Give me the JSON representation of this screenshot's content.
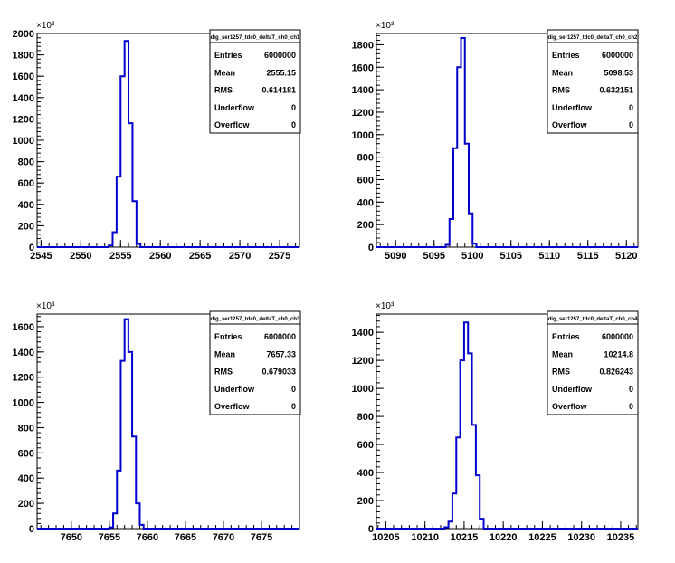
{
  "chart_data": [
    {
      "type": "bar",
      "title": "",
      "stats_title": "dig_ser1257_tdc0_deltaT_ch0_ch1",
      "stats": [
        {
          "label": "Entries",
          "value": "6000000"
        },
        {
          "label": "Mean",
          "value": "2555.15"
        },
        {
          "label": "RMS",
          "value": "0.614181"
        },
        {
          "label": "Underflow",
          "value": "0"
        },
        {
          "label": "Overflow",
          "value": "0"
        }
      ],
      "y_exponent_label": "×10³",
      "xlim": [
        2544.5,
        2577.5
      ],
      "ylim": [
        0,
        2000
      ],
      "xticks": [
        2545,
        2550,
        2555,
        2560,
        2565,
        2570,
        2575
      ],
      "yticks": [
        0,
        200,
        400,
        600,
        800,
        1000,
        1200,
        1400,
        1600,
        1800,
        2000
      ],
      "bin_width": 0.5,
      "bins_x": [
        2553.5,
        2554.0,
        2554.5,
        2555.0,
        2555.5,
        2556.0,
        2556.5,
        2557.0
      ],
      "bins_y": [
        15,
        140,
        660,
        1600,
        1930,
        1160,
        430,
        30
      ]
    },
    {
      "type": "bar",
      "title": "",
      "stats_title": "dig_ser1257_tdc0_deltaT_ch0_ch2",
      "stats": [
        {
          "label": "Entries",
          "value": "6000000"
        },
        {
          "label": "Mean",
          "value": "5098.53"
        },
        {
          "label": "RMS",
          "value": "0.632151"
        },
        {
          "label": "Underflow",
          "value": "0"
        },
        {
          "label": "Overflow",
          "value": "0"
        }
      ],
      "y_exponent_label": "×10³",
      "xlim": [
        5087.5,
        5121.5
      ],
      "ylim": [
        0,
        1900
      ],
      "xticks": [
        5090,
        5095,
        5100,
        5105,
        5110,
        5115,
        5120
      ],
      "yticks": [
        0,
        200,
        400,
        600,
        800,
        1000,
        1200,
        1400,
        1600,
        1800
      ],
      "bin_width": 0.5,
      "bins_x": [
        5096.5,
        5097.0,
        5097.5,
        5098.0,
        5098.5,
        5099.0,
        5099.5,
        5100.0
      ],
      "bins_y": [
        20,
        250,
        880,
        1600,
        1860,
        920,
        300,
        30
      ]
    },
    {
      "type": "bar",
      "title": "",
      "stats_title": "dig_ser1257_tdc0_deltaT_ch0_ch3",
      "stats": [
        {
          "label": "Entries",
          "value": "6000000"
        },
        {
          "label": "Mean",
          "value": "7657.33"
        },
        {
          "label": "RMS",
          "value": "0.679033"
        },
        {
          "label": "Underflow",
          "value": "0"
        },
        {
          "label": "Overflow",
          "value": "0"
        }
      ],
      "y_exponent_label": "×10³",
      "xlim": [
        7645.5,
        7680.0
      ],
      "ylim": [
        0,
        1700
      ],
      "xticks": [
        7650,
        7655,
        7660,
        7665,
        7670,
        7675
      ],
      "yticks": [
        0,
        200,
        400,
        600,
        800,
        1000,
        1200,
        1400,
        1600
      ],
      "bin_width": 0.5,
      "bins_x": [
        7655.0,
        7655.5,
        7656.0,
        7656.5,
        7657.0,
        7657.5,
        7658.0,
        7658.5,
        7659.0
      ],
      "bins_y": [
        10,
        120,
        460,
        1330,
        1660,
        1400,
        730,
        200,
        30
      ]
    },
    {
      "type": "bar",
      "title": "",
      "stats_title": "dig_ser1257_tdc0_deltaT_ch0_ch4",
      "stats": [
        {
          "label": "Entries",
          "value": "6000000"
        },
        {
          "label": "Mean",
          "value": "10214.8"
        },
        {
          "label": "RMS",
          "value": "0.826243"
        },
        {
          "label": "Underflow",
          "value": "0"
        },
        {
          "label": "Overflow",
          "value": "0"
        }
      ],
      "y_exponent_label": "×10³",
      "xlim": [
        10203.8,
        10237.2
      ],
      "ylim": [
        0,
        1530
      ],
      "xticks": [
        10205,
        10210,
        10215,
        10220,
        10225,
        10230,
        10235
      ],
      "yticks": [
        0,
        200,
        400,
        600,
        800,
        1000,
        1200,
        1400
      ],
      "bin_width": 0.5,
      "bins_x": [
        10212.5,
        10213.0,
        10213.5,
        10214.0,
        10214.5,
        10215.0,
        10215.5,
        10216.0,
        10216.5,
        10217.0
      ],
      "bins_y": [
        10,
        50,
        250,
        650,
        1200,
        1470,
        1250,
        740,
        380,
        70
      ]
    }
  ],
  "colors": {
    "histogram_line": "#0000cc",
    "axis": "#000000",
    "background": "#ffffff"
  }
}
